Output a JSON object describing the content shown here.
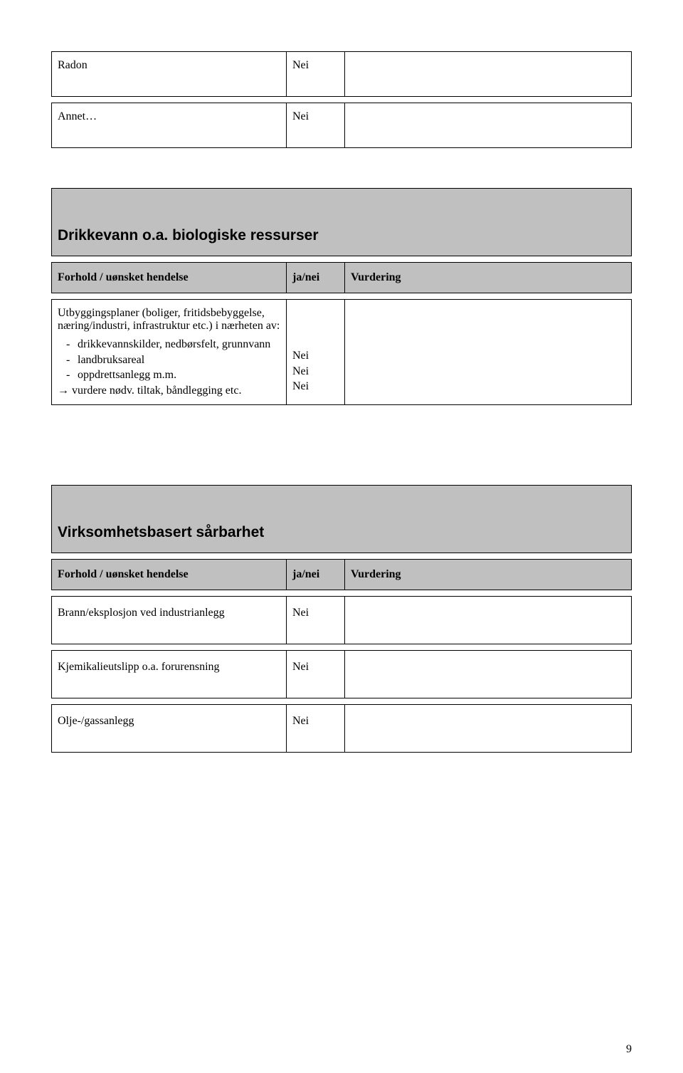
{
  "colors": {
    "header_bg": "#c0c0c0",
    "border": "#000000",
    "page_bg": "#ffffff",
    "text": "#000000"
  },
  "top_rows": [
    {
      "label": "Radon",
      "value": "Nei"
    },
    {
      "label": "Annet…",
      "value": "Nei"
    }
  ],
  "section1": {
    "title": "Drikkevann o.a. biologiske ressurser",
    "col_headers": {
      "c1": "Forhold / uønsket hendelse",
      "c2": "ja/nei",
      "c3": "Vurdering"
    },
    "body": {
      "intro": "Utbyggingsplaner (boliger, fritidsbebyggelse, næring/industri, infrastruktur etc.) i nærheten av:",
      "items": [
        "drikkevannskilder, nedbørsfelt, grunnvann",
        "landbruksareal",
        "oppdrettsanlegg m.m."
      ],
      "arrow_line": "→ vurdere nødv. tiltak, båndlegging etc.",
      "values": [
        "Nei",
        "Nei",
        "Nei"
      ]
    }
  },
  "section2": {
    "title": "Virksomhetsbasert sårbarhet",
    "col_headers": {
      "c1": "Forhold / uønsket hendelse",
      "c2": "ja/nei",
      "c3": "Vurdering"
    },
    "rows": [
      {
        "label": "Brann/eksplosjon ved industrianlegg",
        "value": "Nei"
      },
      {
        "label": "Kjemikalieutslipp o.a. forurensning",
        "value": "Nei"
      },
      {
        "label": "Olje-/gassanlegg",
        "value": "Nei"
      }
    ]
  },
  "page_number": "9"
}
